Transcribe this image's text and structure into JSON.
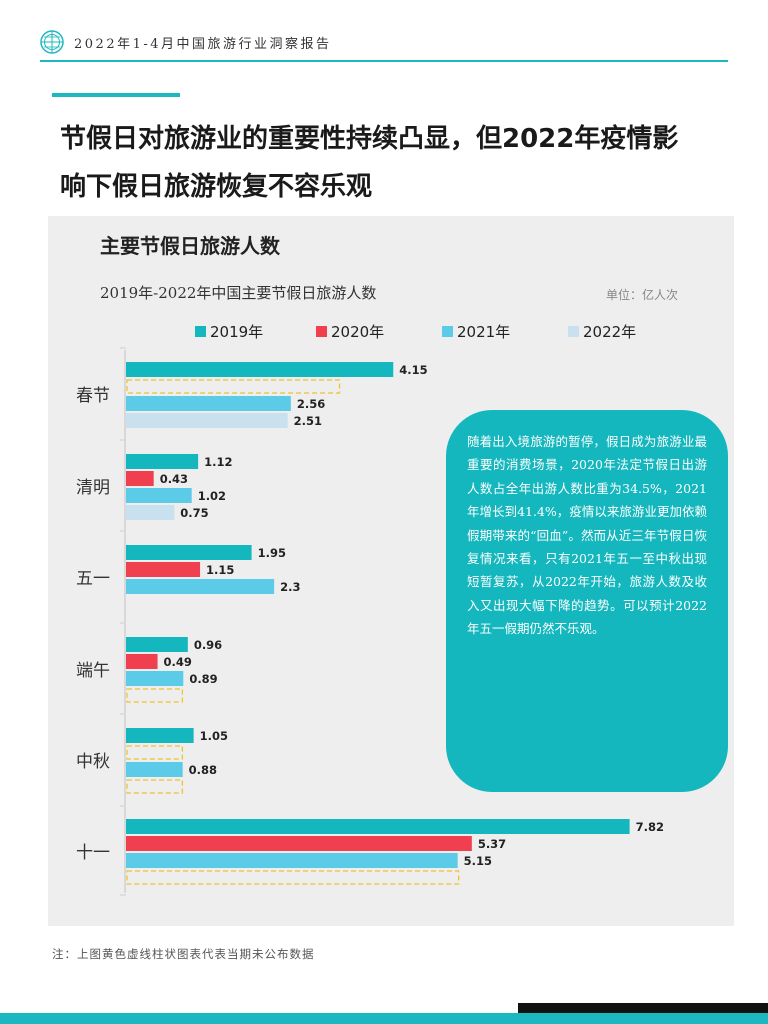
{
  "header": {
    "report_title": "2022年1-4月中国旅游行业洞察报告"
  },
  "title": {
    "line1": "节假日对旅游业的重要性持续凸显，但2022年疫情影",
    "line2": "响下假日旅游恢复不容乐观"
  },
  "chart_section": {
    "heading": "主要节假日旅游人数",
    "subtitle": "2019年-2022年中国主要节假日旅游人数",
    "unit": "单位：亿人次"
  },
  "colors": {
    "accent": "#1bb9bf",
    "s2019": "#14b7bd",
    "s2020": "#f0404f",
    "s2021": "#5ccbe7",
    "s2022": "#c9e1ee",
    "placeholder": "#f0c22c"
  },
  "chart_data": {
    "type": "bar",
    "orientation": "horizontal",
    "categories": [
      "春节",
      "清明",
      "五一",
      "端午",
      "中秋",
      "十一"
    ],
    "series": [
      {
        "name": "2019年",
        "values": [
          4.15,
          1.12,
          1.95,
          0.96,
          1.05,
          7.82
        ]
      },
      {
        "name": "2020年",
        "values": [
          null,
          0.43,
          1.15,
          0.49,
          null,
          5.37
        ]
      },
      {
        "name": "2021年",
        "values": [
          2.56,
          1.02,
          2.3,
          0.89,
          0.88,
          5.15
        ]
      },
      {
        "name": "2022年",
        "values": [
          2.51,
          0.75,
          null,
          null,
          null,
          null
        ]
      }
    ],
    "placeholders": [
      {
        "category": "春节",
        "series": "2020年",
        "value": 3.3
      },
      {
        "category": "端午",
        "series": "2022年",
        "value": 0.86
      },
      {
        "category": "中秋",
        "series": "2020年",
        "value": 0.86
      },
      {
        "category": "中秋",
        "series": "2022年",
        "value": 0.86
      },
      {
        "category": "十一",
        "series": "2022年",
        "value": 5.15
      }
    ],
    "legend_position": "top",
    "grid": false
  },
  "callout": {
    "text": "随着出入境旅游的暂停，假日成为旅游业最重要的消费场景，2020年法定节假日出游人数占全年出游人数比重为34.5%，2021年增长到41.4%，疫情以来旅游业更加依赖假期带来的“回血”。然而从近三年节假日恢复情况来看，只有2021年五一至中秋出现短暂复苏，从2022年开始，旅游人数及收入又出现大幅下降的趋势。可以预计2022年五一假期仍然不乐观。"
  },
  "footnote": "注：上图黄色虚线柱状图表代表当期未公布数据"
}
